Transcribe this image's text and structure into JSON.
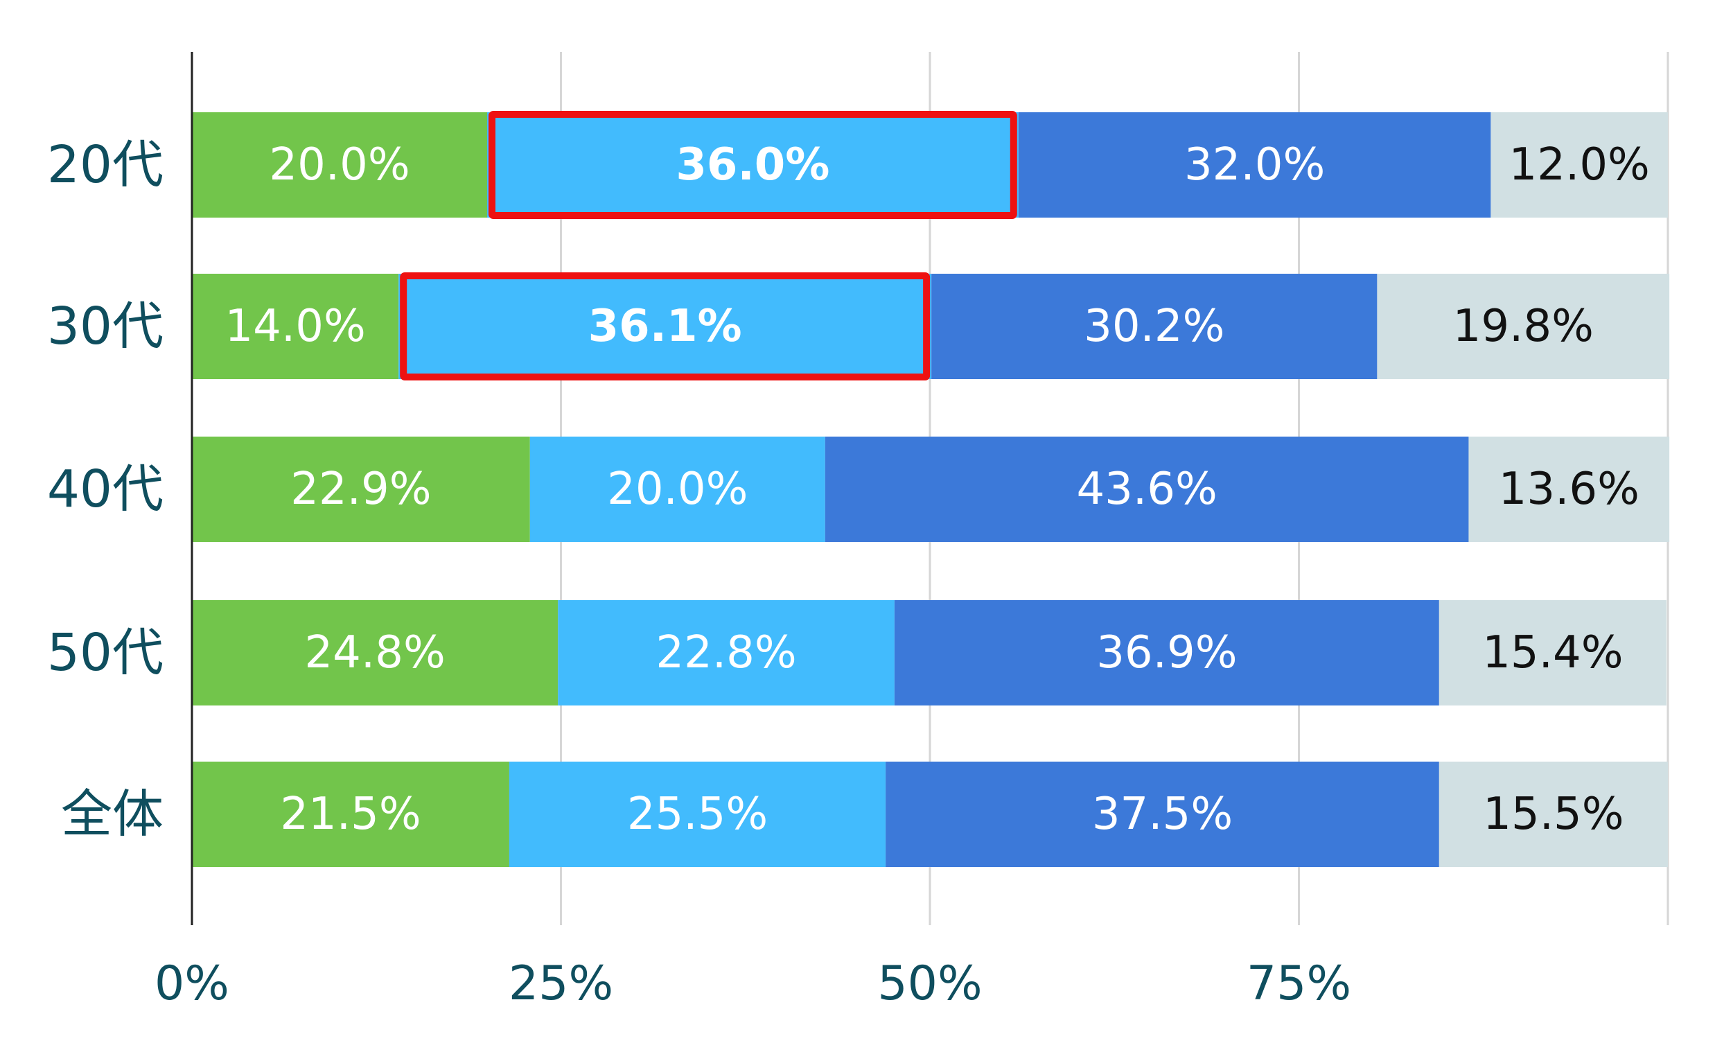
{
  "chart_data": {
    "type": "bar",
    "orientation": "horizontal",
    "stacked": true,
    "categories": [
      "20代",
      "30代",
      "40代",
      "50代",
      "全体"
    ],
    "series": [
      {
        "values": [
          20.0,
          14.0,
          22.9,
          24.8,
          21.5
        ],
        "color": "#72c54b",
        "label_color": "#ffffff"
      },
      {
        "values": [
          36.0,
          36.1,
          20.0,
          22.8,
          25.5
        ],
        "color": "#42bbfd",
        "label_color": "#ffffff"
      },
      {
        "values": [
          32.0,
          30.2,
          43.6,
          36.9,
          37.5
        ],
        "color": "#3c79d9",
        "label_color": "#ffffff"
      },
      {
        "values": [
          12.0,
          19.8,
          13.6,
          15.4,
          15.5
        ],
        "color": "#d1e0e3",
        "label_color": "#111111"
      }
    ],
    "data_labels": [
      [
        "20.0%",
        "36.0%",
        "32.0%",
        "12.0%"
      ],
      [
        "14.0%",
        "36.1%",
        "30.2%",
        "19.8%"
      ],
      [
        "22.9%",
        "20.0%",
        "43.6%",
        "13.6%"
      ],
      [
        "24.8%",
        "22.8%",
        "36.9%",
        "15.4%"
      ],
      [
        "21.5%",
        "25.5%",
        "37.5%",
        "15.5%"
      ]
    ],
    "x_ticks": [
      "0%",
      "25%",
      "50%",
      "75%"
    ],
    "xlim": [
      0,
      100
    ],
    "grid": true,
    "legend": "none",
    "highlights": [
      {
        "category": "20代",
        "series_index": 1,
        "color": "#ee1111"
      },
      {
        "category": "30代",
        "series_index": 1,
        "color": "#ee1111"
      }
    ]
  }
}
